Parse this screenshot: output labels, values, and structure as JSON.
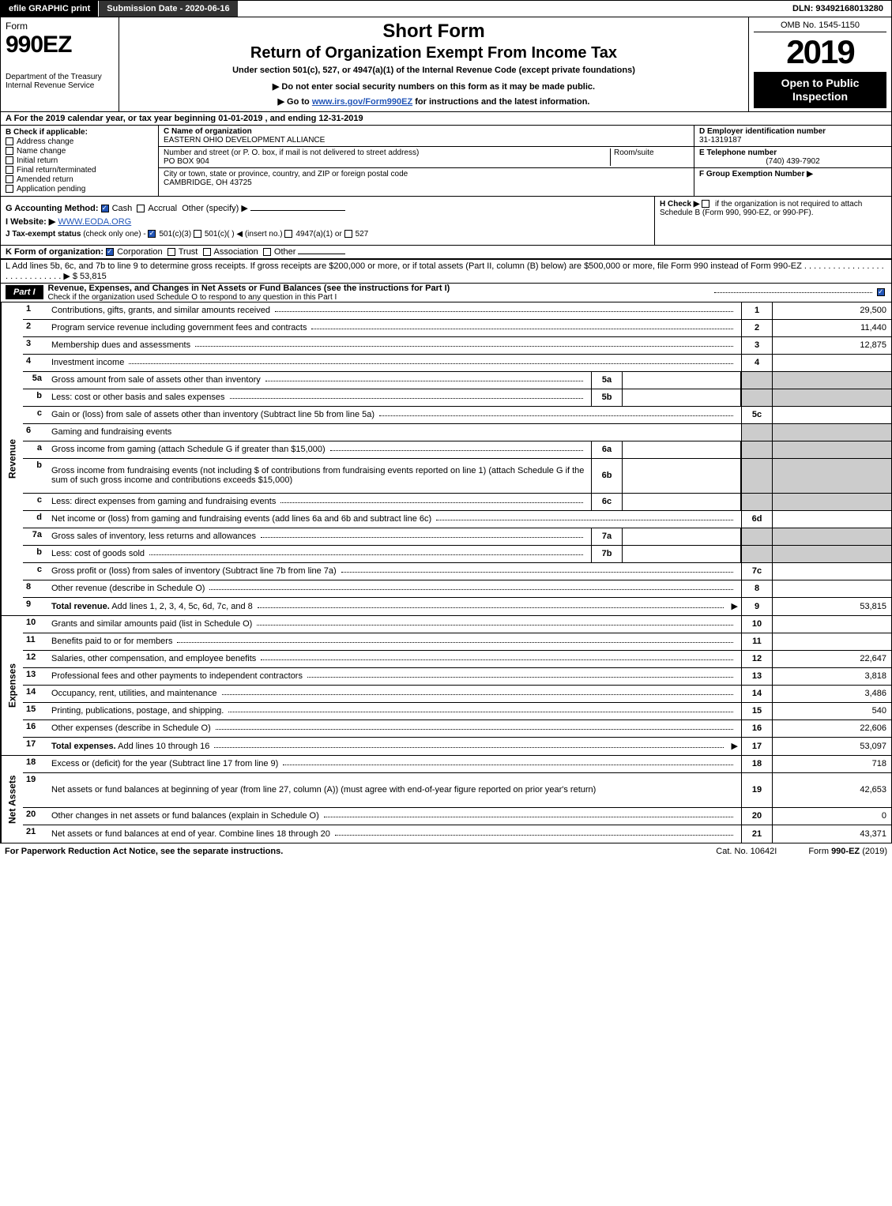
{
  "topbar": {
    "efile": "efile GRAPHIC print",
    "submission": "Submission Date - 2020-06-16",
    "dln": "DLN: 93492168013280"
  },
  "header": {
    "form_word": "Form",
    "form_num": "990EZ",
    "dept": "Department of the Treasury",
    "irs": "Internal Revenue Service",
    "short": "Short Form",
    "return_title": "Return of Organization Exempt From Income Tax",
    "under": "Under section 501(c), 527, or 4947(a)(1) of the Internal Revenue Code (except private foundations)",
    "donot": "▶ Do not enter social security numbers on this form as it may be made public.",
    "goto_pre": "▶ Go to ",
    "goto_link": "www.irs.gov/Form990EZ",
    "goto_post": " for instructions and the latest information.",
    "omb": "OMB No. 1545-1150",
    "year": "2019",
    "open": "Open to Public Inspection"
  },
  "rowA": {
    "label": "A For the 2019 calendar year, or tax year beginning ",
    "begin": "01-01-2019",
    "mid": " , and ending ",
    "end": "12-31-2019"
  },
  "colB": {
    "title": "B Check if applicable:",
    "items": [
      "Address change",
      "Name change",
      "Initial return",
      "Final return/terminated",
      "Amended return",
      "Application pending"
    ]
  },
  "colC": {
    "name_label": "C Name of organization",
    "name": "EASTERN OHIO DEVELOPMENT ALLIANCE",
    "street_label": "Number and street (or P. O. box, if mail is not delivered to street address)",
    "street": "PO BOX 904",
    "room_label": "Room/suite",
    "city_label": "City or town, state or province, country, and ZIP or foreign postal code",
    "city": "CAMBRIDGE, OH  43725"
  },
  "colDEF": {
    "d_label": "D Employer identification number",
    "d_val": "31-1319187",
    "e_label": "E Telephone number",
    "e_val": "(740) 439-7902",
    "f_label": "F Group Exemption Number  ▶"
  },
  "rowG": {
    "label": "G Accounting Method:",
    "cash": "Cash",
    "accrual": "Accrual",
    "other": "Other (specify) ▶"
  },
  "rowH": {
    "label": "H Check ▶",
    "text": "if the organization is not required to attach Schedule B (Form 990, 990-EZ, or 990-PF)."
  },
  "rowI": {
    "label": "I Website: ▶",
    "val": "WWW.EODA.ORG"
  },
  "rowJ": {
    "label": "J Tax-exempt status",
    "sub": "(check only one) -",
    "opts": [
      "501(c)(3)",
      "501(c)(  ) ◀ (insert no.)",
      "4947(a)(1) or",
      "527"
    ]
  },
  "rowK": {
    "label": "K Form of organization:",
    "opts": [
      "Corporation",
      "Trust",
      "Association",
      "Other"
    ]
  },
  "rowL": {
    "text": "L Add lines 5b, 6c, and 7b to line 9 to determine gross receipts. If gross receipts are $200,000 or more, or if total assets (Part II, column (B) below) are $500,000 or more, file Form 990 instead of Form 990-EZ",
    "amount": "▶ $ 53,815"
  },
  "part1": {
    "badge": "Part I",
    "title": "Revenue, Expenses, and Changes in Net Assets or Fund Balances (see the instructions for Part I)",
    "sub": "Check if the organization used Schedule O to respond to any question in this Part I"
  },
  "sections": {
    "revenue": "Revenue",
    "expenses": "Expenses",
    "netassets": "Net Assets"
  },
  "revenue_lines": [
    {
      "n": "1",
      "desc": "Contributions, gifts, grants, and similar amounts received",
      "rn": "1",
      "rv": "29,500"
    },
    {
      "n": "2",
      "desc": "Program service revenue including government fees and contracts",
      "rn": "2",
      "rv": "11,440"
    },
    {
      "n": "3",
      "desc": "Membership dues and assessments",
      "rn": "3",
      "rv": "12,875"
    },
    {
      "n": "4",
      "desc": "Investment income",
      "rn": "4",
      "rv": ""
    },
    {
      "n": "5a",
      "sub": true,
      "desc": "Gross amount from sale of assets other than inventory",
      "mn": "5a",
      "mv": "",
      "shaded": true
    },
    {
      "n": "b",
      "sub": true,
      "desc": "Less: cost or other basis and sales expenses",
      "mn": "5b",
      "mv": "",
      "shaded": true
    },
    {
      "n": "c",
      "sub": true,
      "desc": "Gain or (loss) from sale of assets other than inventory (Subtract line 5b from line 5a)",
      "rn": "5c",
      "rv": ""
    },
    {
      "n": "6",
      "desc": "Gaming and fundraising events",
      "shaded": true,
      "nomid": true,
      "noval": true
    },
    {
      "n": "a",
      "sub": true,
      "desc": "Gross income from gaming (attach Schedule G if greater than $15,000)",
      "mn": "6a",
      "mv": "",
      "shaded": true
    },
    {
      "n": "b",
      "sub": true,
      "desc": "Gross income from fundraising events (not including $                   of contributions from fundraising events reported on line 1) (attach Schedule G if the sum of such gross income and contributions exceeds $15,000)",
      "mn": "6b",
      "mv": "",
      "shaded": true,
      "tall": true
    },
    {
      "n": "c",
      "sub": true,
      "desc": "Less: direct expenses from gaming and fundraising events",
      "mn": "6c",
      "mv": "",
      "shaded": true
    },
    {
      "n": "d",
      "sub": true,
      "desc": "Net income or (loss) from gaming and fundraising events (add lines 6a and 6b and subtract line 6c)",
      "rn": "6d",
      "rv": ""
    },
    {
      "n": "7a",
      "sub": true,
      "desc": "Gross sales of inventory, less returns and allowances",
      "mn": "7a",
      "mv": "",
      "shaded": true
    },
    {
      "n": "b",
      "sub": true,
      "desc": "Less: cost of goods sold",
      "mn": "7b",
      "mv": "",
      "shaded": true
    },
    {
      "n": "c",
      "sub": true,
      "desc": "Gross profit or (loss) from sales of inventory (Subtract line 7b from line 7a)",
      "rn": "7c",
      "rv": ""
    },
    {
      "n": "8",
      "desc": "Other revenue (describe in Schedule O)",
      "rn": "8",
      "rv": ""
    },
    {
      "n": "9",
      "desc": "Total revenue. Add lines 1, 2, 3, 4, 5c, 6d, 7c, and 8",
      "bold": true,
      "arrow": true,
      "rn": "9",
      "rv": "53,815"
    }
  ],
  "expense_lines": [
    {
      "n": "10",
      "desc": "Grants and similar amounts paid (list in Schedule O)",
      "rn": "10",
      "rv": ""
    },
    {
      "n": "11",
      "desc": "Benefits paid to or for members",
      "rn": "11",
      "rv": ""
    },
    {
      "n": "12",
      "desc": "Salaries, other compensation, and employee benefits",
      "rn": "12",
      "rv": "22,647"
    },
    {
      "n": "13",
      "desc": "Professional fees and other payments to independent contractors",
      "rn": "13",
      "rv": "3,818"
    },
    {
      "n": "14",
      "desc": "Occupancy, rent, utilities, and maintenance",
      "rn": "14",
      "rv": "3,486"
    },
    {
      "n": "15",
      "desc": "Printing, publications, postage, and shipping.",
      "rn": "15",
      "rv": "540"
    },
    {
      "n": "16",
      "desc": "Other expenses (describe in Schedule O)",
      "rn": "16",
      "rv": "22,606"
    },
    {
      "n": "17",
      "desc": "Total expenses. Add lines 10 through 16",
      "bold": true,
      "arrow": true,
      "rn": "17",
      "rv": "53,097"
    }
  ],
  "netasset_lines": [
    {
      "n": "18",
      "desc": "Excess or (deficit) for the year (Subtract line 17 from line 9)",
      "rn": "18",
      "rv": "718"
    },
    {
      "n": "19",
      "desc": "Net assets or fund balances at beginning of year (from line 27, column (A)) (must agree with end-of-year figure reported on prior year's return)",
      "rn": "19",
      "rv": "42,653",
      "tall": true,
      "shaded_first": true
    },
    {
      "n": "20",
      "desc": "Other changes in net assets or fund balances (explain in Schedule O)",
      "rn": "20",
      "rv": "0"
    },
    {
      "n": "21",
      "desc": "Net assets or fund balances at end of year. Combine lines 18 through 20",
      "rn": "21",
      "rv": "43,371"
    }
  ],
  "footer": {
    "left": "For Paperwork Reduction Act Notice, see the separate instructions.",
    "center": "Cat. No. 10642I",
    "right_pre": "Form ",
    "right_b": "990-EZ",
    "right_post": " (2019)"
  }
}
